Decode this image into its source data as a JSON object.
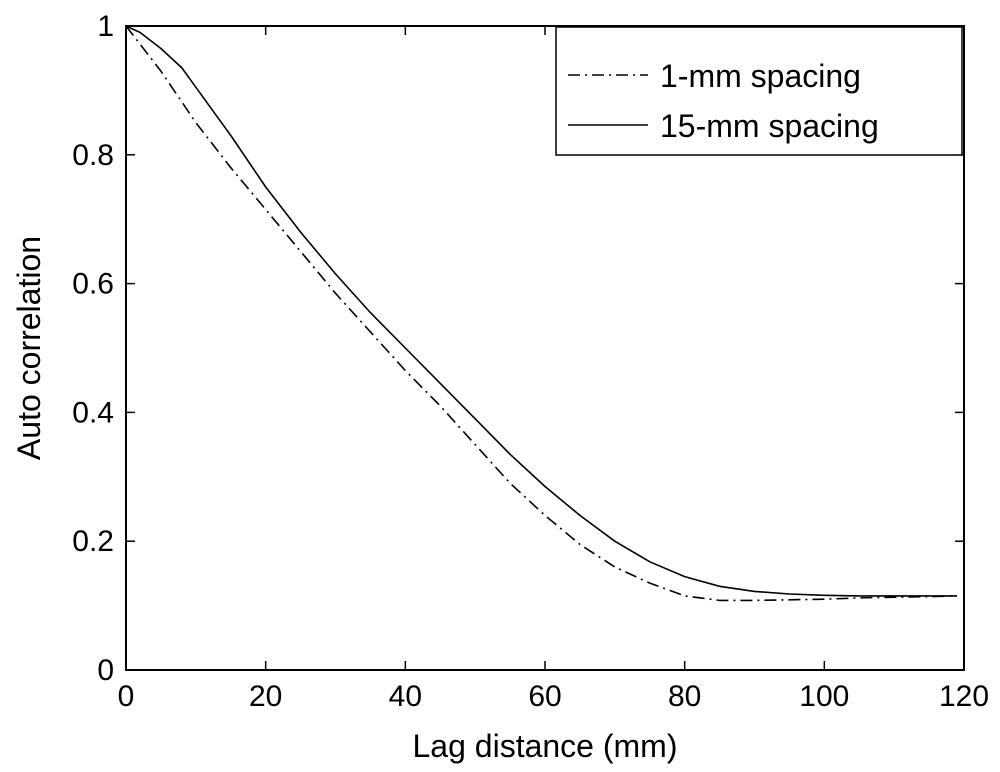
{
  "chart_data": {
    "type": "line",
    "title": "",
    "xlabel": "Lag distance (mm)",
    "ylabel": "Auto correlation",
    "xlim": [
      0,
      120
    ],
    "ylim": [
      0,
      1
    ],
    "xticks": [
      0,
      20,
      40,
      60,
      80,
      100,
      120
    ],
    "yticks": [
      0,
      0.2,
      0.4,
      0.6,
      0.8,
      1
    ],
    "xtick_labels": [
      "0",
      "20",
      "40",
      "60",
      "80",
      "100",
      "120"
    ],
    "ytick_labels": [
      "0",
      "0.2",
      "0.4",
      "0.6",
      "0.8",
      "1"
    ],
    "grid": false,
    "legend": "top-right",
    "series": [
      {
        "name": "1-mm spacing",
        "style": "dashdot",
        "color": "#000000",
        "x": [
          0,
          5,
          10,
          15,
          20,
          25,
          30,
          35,
          40,
          45,
          50,
          55,
          60,
          65,
          70,
          75,
          80,
          85,
          90,
          95,
          100,
          105,
          110,
          115,
          119
        ],
        "y": [
          1.0,
          0.93,
          0.85,
          0.78,
          0.715,
          0.65,
          0.585,
          0.525,
          0.465,
          0.41,
          0.35,
          0.29,
          0.24,
          0.195,
          0.16,
          0.135,
          0.115,
          0.108,
          0.108,
          0.109,
          0.11,
          0.112,
          0.113,
          0.114,
          0.115
        ]
      },
      {
        "name": "15-mm spacing",
        "style": "solid",
        "color": "#000000",
        "x": [
          0,
          2,
          5,
          8,
          10,
          15,
          20,
          25,
          30,
          35,
          40,
          45,
          50,
          55,
          60,
          65,
          70,
          75,
          80,
          85,
          90,
          95,
          100,
          105,
          110,
          115,
          119
        ],
        "y": [
          1.0,
          0.99,
          0.965,
          0.935,
          0.905,
          0.83,
          0.75,
          0.68,
          0.615,
          0.555,
          0.5,
          0.445,
          0.39,
          0.335,
          0.285,
          0.24,
          0.2,
          0.168,
          0.145,
          0.13,
          0.122,
          0.118,
          0.116,
          0.115,
          0.115,
          0.115,
          0.115
        ]
      }
    ]
  }
}
